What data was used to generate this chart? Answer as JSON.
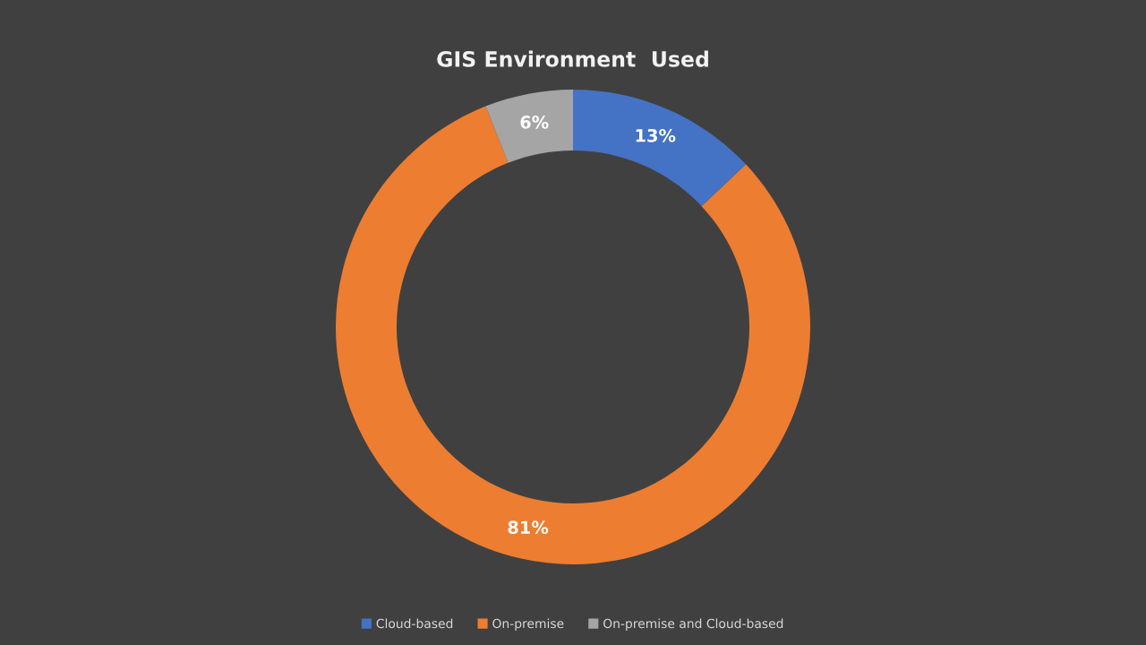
{
  "chart_data": {
    "type": "donut",
    "title": "GIS Environment  Used",
    "categories": [
      "Cloud-based",
      "On-premise",
      "On-premise and Cloud-based"
    ],
    "values": [
      13,
      81,
      6
    ],
    "colors": [
      "#4472c4",
      "#ed7d31",
      "#a5a5a5"
    ],
    "value_labels": [
      "13%",
      "81%",
      "6%"
    ],
    "legend": "bottom"
  }
}
